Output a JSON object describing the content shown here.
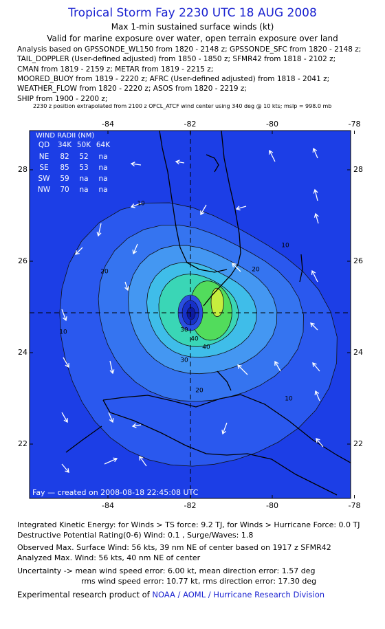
{
  "header": {
    "title": "Tropical Storm Fay 2230 UTC 18 AUG 2008",
    "subtitle": "Max 1-min sustained surface winds (kt)",
    "valid": "Valid for marine exposure over water, open terrain exposure over land",
    "sources": [
      "Analysis based on  GPSSONDE_WL150 from 1820 - 2148 z;  GPSSONDE_SFC from 1820 - 2148 z;",
      "TAIL_DOPPLER (User-defined adjusted) from 1850 - 1850 z;  SFMR42 from 1818 - 2102 z;",
      "CMAN from 1819 - 2159 z;  METAR from 1819 - 2215 z;",
      "MOORED_BUOY from 1819 - 2220 z;  AFRC (User-defined adjusted) from 1818 - 2041 z;",
      "WEATHER_FLOW from 1820 - 2220 z;  ASOS from 1820 - 2219 z;",
      "SHIP from 1900 - 2200 z;"
    ],
    "note": "2230 z position extrapolated from 2100 z OFCL_ATCF wind center using 340 deg @ 10 kts; mslp = 998.0 mb"
  },
  "map": {
    "lon_ticks": [
      -84,
      -82,
      -80,
      -78
    ],
    "lat_ticks": [
      28,
      26,
      24,
      22
    ],
    "wind_radii": {
      "title": "WIND RADII (NM)",
      "header": [
        "QD",
        "34K",
        "50K",
        "64K"
      ],
      "rows": [
        [
          "NE",
          "82",
          "52",
          "na"
        ],
        [
          "SE",
          "85",
          "53",
          "na"
        ],
        [
          "SW",
          "59",
          "na",
          "na"
        ],
        [
          "NW",
          "70",
          "na",
          "na"
        ]
      ]
    },
    "contour_labels": [
      "10",
      "10",
      "20",
      "20",
      "30",
      "40",
      "40",
      "30",
      "10",
      "20",
      "10"
    ],
    "credit": "Fay — created on 2008-08-18 22:45:08 UTC"
  },
  "footer": {
    "lines": [
      "Integrated Kinetic Energy:  for Winds > TS force: 9.2 TJ,  for Winds > Hurricane Force: 0.0 TJ",
      "Destructive Potential Rating(0-6)   Wind: 0.1 , Surge/Waves: 1.8",
      "Observed Max. Surface Wind: 56 kts, 39 nm NE of center based on 1917 z SFMR42",
      "Analyzed Max. Wind: 56 kts, 40 nm NE of center",
      "Uncertainty -> mean wind speed error: 6.00 kt,   mean direction error: 1.57 deg",
      "rms wind speed error: 10.77 kt,   rms direction error: 17.30 deg"
    ],
    "credit_prefix": "Experimental research product of ",
    "credit_link": "NOAA / AOML / Hurricane Research Division"
  }
}
